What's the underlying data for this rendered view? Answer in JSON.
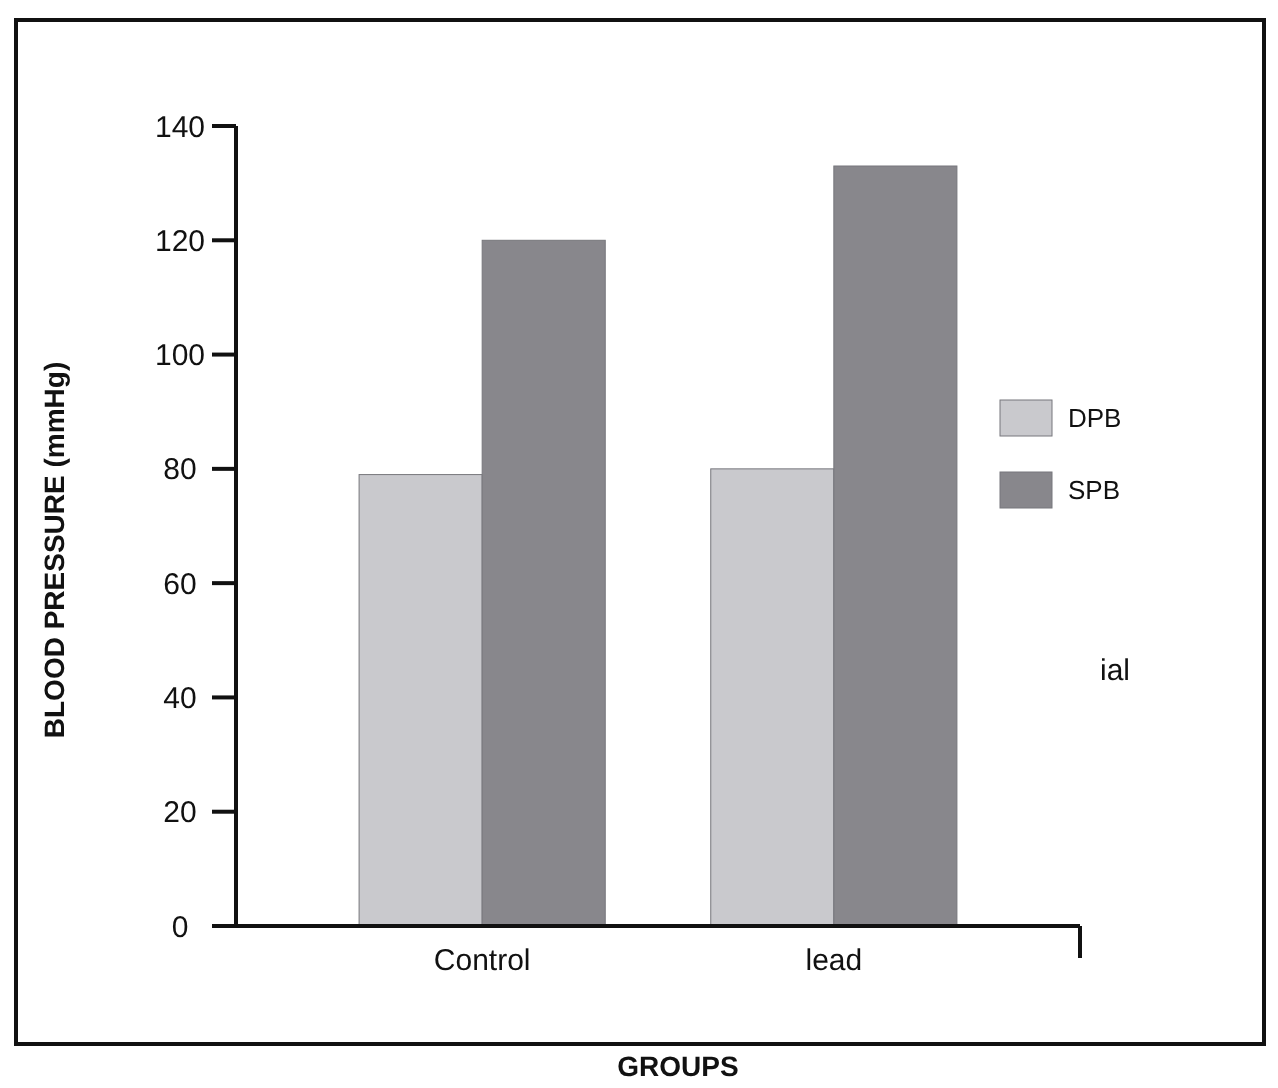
{
  "chart_data": {
    "type": "bar",
    "xlabel": "GROUPS",
    "ylabel": "BLOOD PRESSURE (mmHg)",
    "categories": [
      "Control",
      "lead"
    ],
    "series": [
      {
        "name": "DPB",
        "color": "#c9c9cd",
        "values": [
          79,
          80
        ]
      },
      {
        "name": "SPB",
        "color": "#88878c",
        "values": [
          120,
          133
        ]
      }
    ],
    "ylim": [
      0,
      140
    ],
    "yticks": [
      0,
      20,
      40,
      60,
      80,
      100,
      120,
      140
    ],
    "legend": "right",
    "annotations": [
      "ial"
    ]
  }
}
